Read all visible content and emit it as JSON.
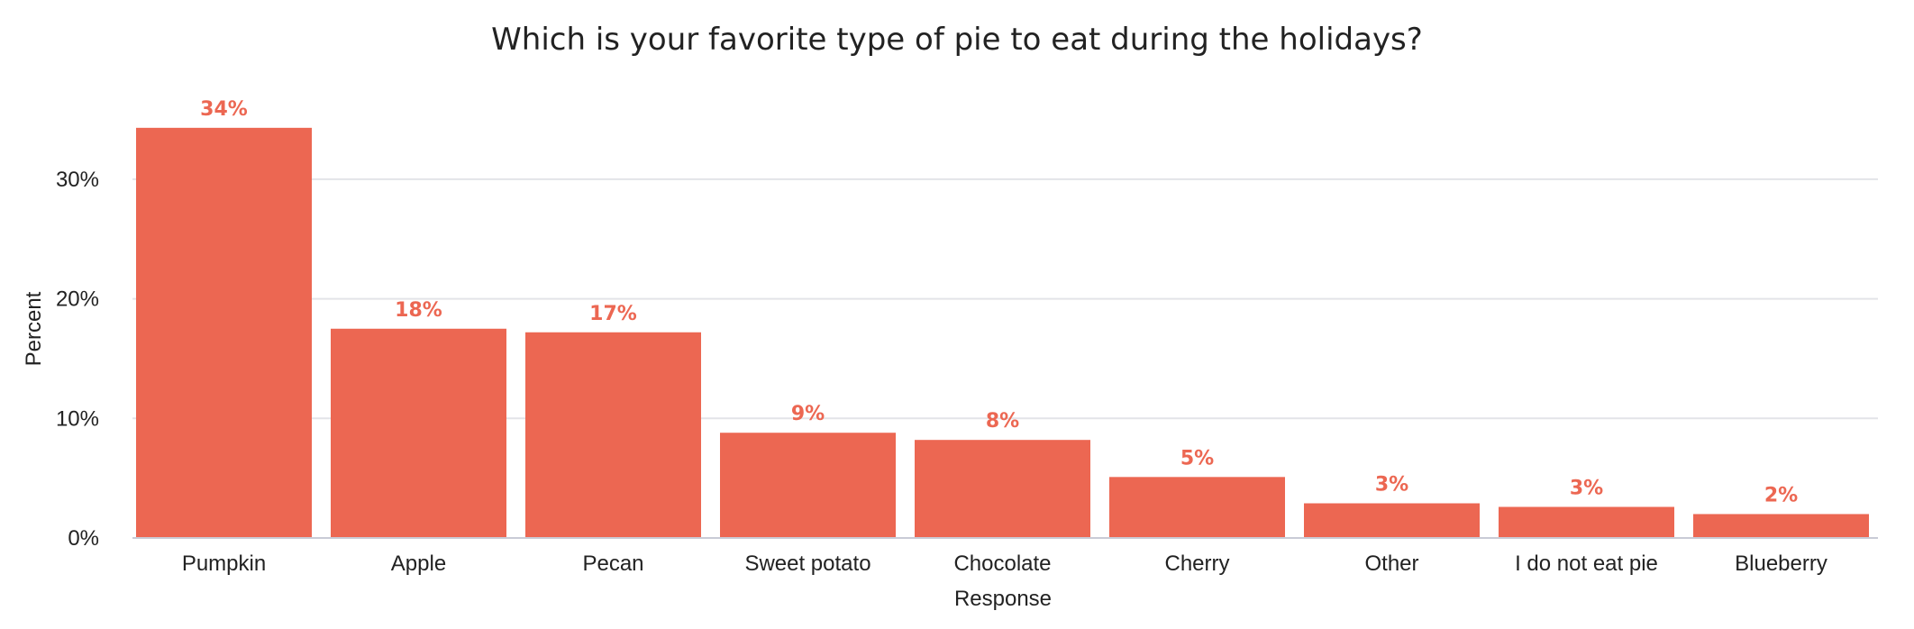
{
  "chart_data": {
    "type": "bar",
    "title": "Which is your favorite type of pie to eat during the holidays?",
    "xlabel": "Response",
    "ylabel": "Percent",
    "categories": [
      "Pumpkin",
      "Apple",
      "Pecan",
      "Sweet potato",
      "Chocolate",
      "Cherry",
      "Other",
      "I do not eat pie",
      "Blueberry"
    ],
    "values": [
      34.3,
      17.5,
      17.2,
      8.8,
      8.2,
      5.1,
      2.9,
      2.6,
      2.0
    ],
    "data_labels": [
      "34%",
      "18%",
      "17%",
      "9%",
      "8%",
      "5%",
      "3%",
      "3%",
      "2%"
    ],
    "yticks": [
      0,
      10,
      20,
      30
    ],
    "ytick_labels": [
      "0%",
      "10%",
      "20%",
      "30%"
    ],
    "ylim": [
      0,
      36
    ],
    "grid": true,
    "legend": "none",
    "bar_color": "#ec6752",
    "label_color": "#ec6752"
  }
}
